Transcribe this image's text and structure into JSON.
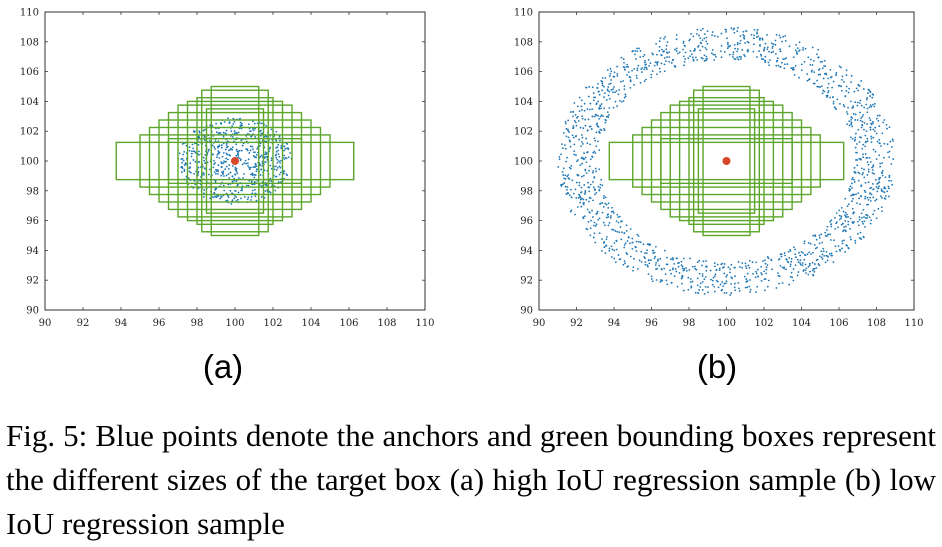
{
  "chart_data": [
    {
      "type": "scatter",
      "panel_label": "(a)",
      "xlim": [
        90,
        110
      ],
      "ylim": [
        90,
        110
      ],
      "xticks": [
        90,
        92,
        94,
        96,
        98,
        100,
        102,
        104,
        106,
        108,
        110
      ],
      "yticks": [
        90,
        92,
        94,
        96,
        98,
        100,
        102,
        104,
        106,
        108,
        110
      ],
      "grid": false,
      "target": {
        "x": 100,
        "y": 100,
        "color": "#d9472b"
      },
      "anchor_distribution": {
        "shape": "ellipse",
        "center": [
          100,
          100
        ],
        "rx_outer": 3.0,
        "ry_outer": 2.9,
        "rx_inner": 0.0,
        "ry_inner": 0.0,
        "count": 700,
        "color": "#1f77b4"
      },
      "boxes": [
        {
          "w": 2.5,
          "h": 10.0
        },
        {
          "w": 3.5,
          "h": 9.5
        },
        {
          "w": 4.0,
          "h": 8.5
        },
        {
          "w": 5.0,
          "h": 8.0
        },
        {
          "w": 6.0,
          "h": 7.5
        },
        {
          "w": 7.0,
          "h": 6.5
        },
        {
          "w": 8.0,
          "h": 5.5
        },
        {
          "w": 9.0,
          "h": 4.5
        },
        {
          "w": 10.0,
          "h": 3.5
        },
        {
          "w": 12.5,
          "h": 2.5
        },
        {
          "w": 3.0,
          "h": 7.0
        },
        {
          "w": 7.0,
          "h": 3.0
        }
      ],
      "box_color": "#5ca52b"
    },
    {
      "type": "scatter",
      "panel_label": "(b)",
      "xlim": [
        90,
        110
      ],
      "ylim": [
        90,
        110
      ],
      "xticks": [
        90,
        92,
        94,
        96,
        98,
        100,
        102,
        104,
        106,
        108,
        110
      ],
      "yticks": [
        90,
        92,
        94,
        96,
        98,
        100,
        102,
        104,
        106,
        108,
        110
      ],
      "grid": false,
      "target": {
        "x": 100,
        "y": 100,
        "color": "#d9472b"
      },
      "anchor_distribution": {
        "shape": "ring",
        "center": [
          100,
          100
        ],
        "rx_outer": 9.0,
        "ry_outer": 9.0,
        "rx_inner": 6.8,
        "ry_inner": 6.8,
        "count": 1600,
        "color": "#1f77b4"
      },
      "boxes": [
        {
          "w": 2.5,
          "h": 10.0
        },
        {
          "w": 3.5,
          "h": 9.5
        },
        {
          "w": 4.0,
          "h": 8.5
        },
        {
          "w": 5.0,
          "h": 8.0
        },
        {
          "w": 6.0,
          "h": 7.5
        },
        {
          "w": 7.0,
          "h": 6.5
        },
        {
          "w": 8.0,
          "h": 5.5
        },
        {
          "w": 9.0,
          "h": 4.5
        },
        {
          "w": 10.0,
          "h": 3.5
        },
        {
          "w": 12.5,
          "h": 2.5
        },
        {
          "w": 3.0,
          "h": 7.0
        },
        {
          "w": 7.0,
          "h": 3.0
        }
      ],
      "box_color": "#5ca52b"
    }
  ],
  "caption": "Fig. 5: Blue points denote the anchors and green bounding boxes represent the different sizes of the target box (a) high IoU regression sample (b) low IoU regression sample"
}
